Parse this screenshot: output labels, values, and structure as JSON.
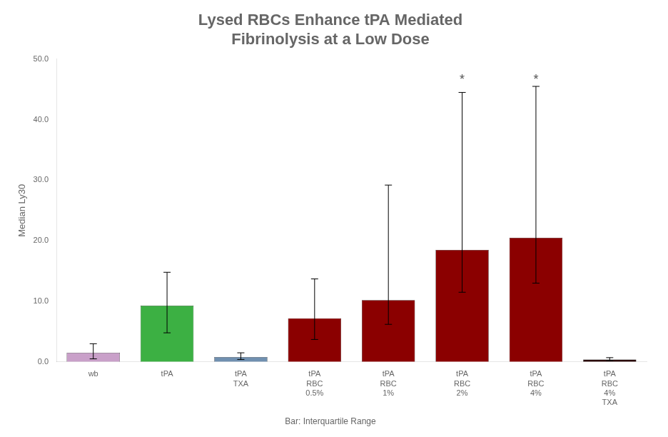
{
  "chart_data": {
    "type": "bar",
    "title": "Lysed RBCs Enhance tPA Mediated\nFibrinolysis at a Low Dose",
    "ylabel": "Median Ly30",
    "caption": "Bar: Interquartile Range",
    "categories": [
      "wb",
      "tPA",
      "tPA\nTXA",
      "tPA\nRBC\n0.5%",
      "tPA\nRBC\n1%",
      "tPA\nRBC\n2%",
      "tPA\nRBC\n4%",
      "tPA\nRBC\n4%\nTXA"
    ],
    "values": [
      1.5,
      9.3,
      0.8,
      7.2,
      10.2,
      18.5,
      20.5,
      0.4
    ],
    "err_low": [
      1.0,
      4.5,
      0.4,
      3.5,
      4.0,
      7.0,
      7.5,
      0.2
    ],
    "err_high": [
      1.5,
      5.5,
      0.7,
      6.5,
      19.0,
      26.0,
      25.0,
      0.3
    ],
    "colors": [
      "#C9A0C9",
      "#3CB043",
      "#7090B0",
      "#8B0000",
      "#8B0000",
      "#8B0000",
      "#8B0000",
      "#2A0A0A"
    ],
    "ylim": [
      0,
      50
    ],
    "yticks": [
      {
        "value": 0,
        "label": "0.0"
      },
      {
        "value": 10,
        "label": "10.0"
      },
      {
        "value": 20,
        "label": "20.0"
      },
      {
        "value": 30,
        "label": "30.0"
      },
      {
        "value": 40,
        "label": "40.0"
      },
      {
        "value": 50,
        "label": "50.0"
      }
    ],
    "grid": false,
    "annotations": [
      {
        "text": "*",
        "x": "tPA\nRBC\n2%",
        "y": 46.5
      },
      {
        "text": "*",
        "x": "tPA\nRBC\n4%",
        "y": 46.5
      }
    ]
  }
}
